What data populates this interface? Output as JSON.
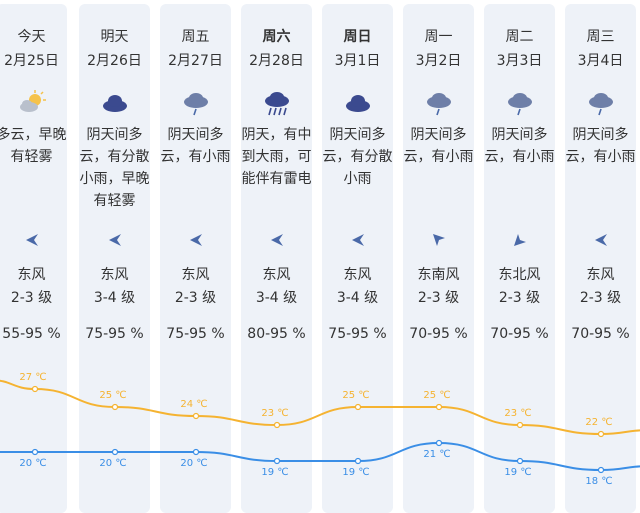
{
  "colors": {
    "high": "#f5b331",
    "low": "#3a8ee6",
    "column_bg": "#eef2f8",
    "cloud": "#3b4a8f",
    "sun": "#f5c24a"
  },
  "days": [
    {
      "weekday": "今天",
      "date": "2月25日",
      "icon": "partly-cloudy-icon",
      "desc": "多云，早晚有轻雾",
      "wind_dir": "东风",
      "wind_level": "2-3 级",
      "humidity": "55-95 %",
      "high": "27 ℃",
      "low": "20 ℃",
      "bold": false
    },
    {
      "weekday": "明天",
      "date": "2月26日",
      "icon": "cloudy-icon",
      "desc": "阴天间多云，有分散小雨，早晚有轻雾",
      "wind_dir": "东风",
      "wind_level": "3-4 级",
      "humidity": "75-95 %",
      "high": "25 ℃",
      "low": "20 ℃",
      "bold": false
    },
    {
      "weekday": "周五",
      "date": "2月27日",
      "icon": "light-rain-icon",
      "desc": "阴天间多云，有小雨",
      "wind_dir": "东风",
      "wind_level": "2-3 级",
      "humidity": "75-95 %",
      "high": "24 ℃",
      "low": "20 ℃",
      "bold": false
    },
    {
      "weekday": "周六",
      "date": "2月28日",
      "icon": "heavy-rain-icon",
      "desc": "阴天，有中到大雨，可能伴有雷电",
      "wind_dir": "东风",
      "wind_level": "3-4 级",
      "humidity": "80-95 %",
      "high": "23 ℃",
      "low": "19 ℃",
      "bold": true
    },
    {
      "weekday": "周日",
      "date": "3月1日",
      "icon": "cloudy-icon",
      "desc": "阴天间多云，有分散小雨",
      "wind_dir": "东风",
      "wind_level": "3-4 级",
      "humidity": "75-95 %",
      "high": "25 ℃",
      "low": "19 ℃",
      "bold": true
    },
    {
      "weekday": "周一",
      "date": "3月2日",
      "icon": "light-rain-icon",
      "desc": "阴天间多云，有小雨",
      "wind_dir": "东南风",
      "wind_level": "2-3 级",
      "humidity": "70-95 %",
      "high": "25 ℃",
      "low": "21 ℃",
      "bold": false
    },
    {
      "weekday": "周二",
      "date": "3月3日",
      "icon": "light-rain-icon",
      "desc": "阴天间多云，有小雨",
      "wind_dir": "东北风",
      "wind_level": "2-3 级",
      "humidity": "70-95 %",
      "high": "23 ℃",
      "low": "19 ℃",
      "bold": false
    },
    {
      "weekday": "周三",
      "date": "3月4日",
      "icon": "light-rain-icon",
      "desc": "阴天间多云，有小雨",
      "wind_dir": "东风",
      "wind_level": "2-3 级",
      "humidity": "70-95 %",
      "high": "22 ℃",
      "low": "18 ℃",
      "bold": false
    }
  ],
  "chart_data": {
    "type": "line",
    "categories": [
      "2月25日",
      "2月26日",
      "2月27日",
      "2月28日",
      "3月1日",
      "3月2日",
      "3月3日",
      "3月4日"
    ],
    "series": [
      {
        "values": [
          27,
          25,
          24,
          23,
          25,
          25,
          23,
          22
        ],
        "color": "#f5b331"
      },
      {
        "values": [
          20,
          20,
          20,
          19,
          19,
          21,
          19,
          18
        ],
        "color": "#3a8ee6"
      }
    ],
    "ylim": [
      18,
      27
    ],
    "grid": false
  }
}
